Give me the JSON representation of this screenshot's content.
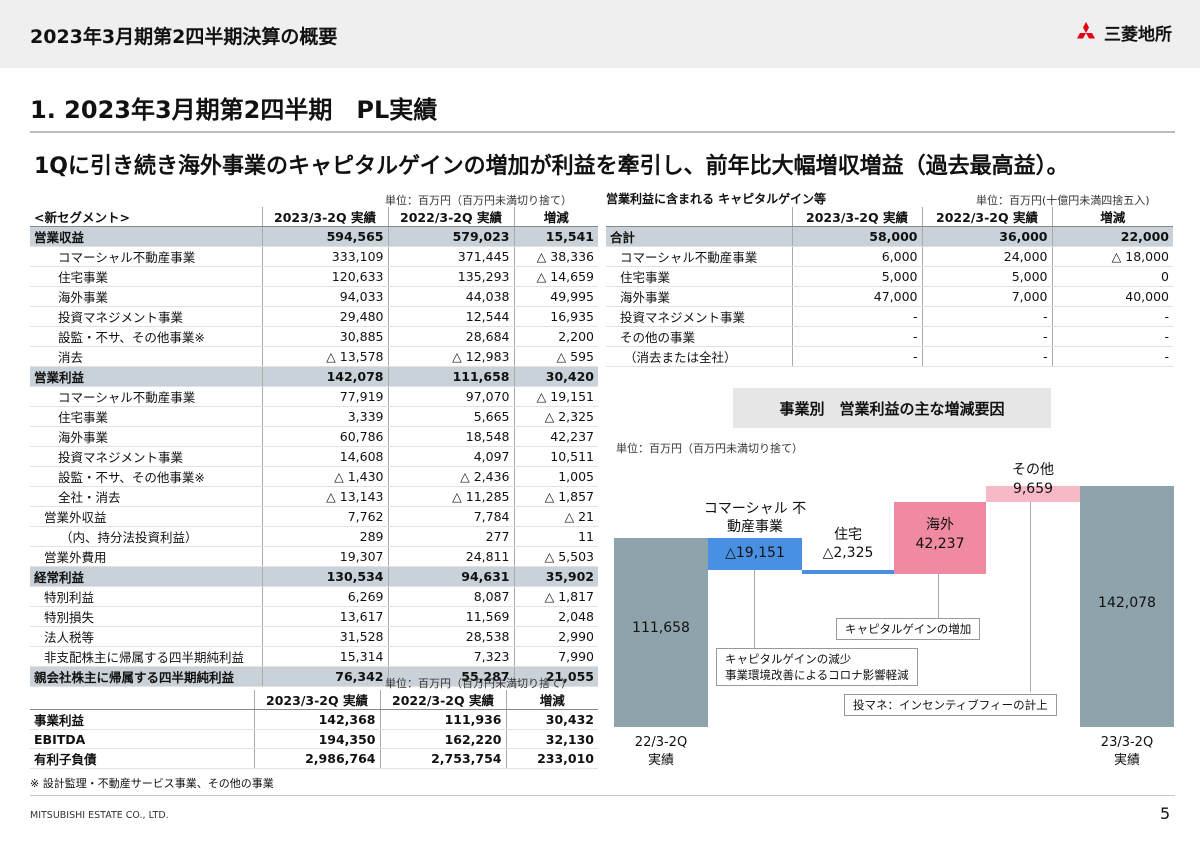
{
  "header": {
    "title": "2023年3月期第2四半期決算の概要",
    "logo_text": "三菱地所"
  },
  "section_title": "1. 2023年3月期第2四半期　PL実績",
  "headline": "1Qに引き続き海外事業のキャピタルゲインの増加が利益を牽引し、前年比大幅増収増益（過去最高益）。",
  "pl_table": {
    "unit": "単位：百万円（百万円未満切り捨て）",
    "headers": [
      "<新セグメント>",
      "2023/3-2Q 実績",
      "2022/3-2Q 実績",
      "増減"
    ],
    "rows": [
      [
        "営業収益",
        "594,565",
        "579,023",
        "15,541"
      ],
      [
        "コマーシャル不動産事業",
        "333,109",
        "371,445",
        "△ 38,336"
      ],
      [
        "住宅事業",
        "120,633",
        "135,293",
        "△ 14,659"
      ],
      [
        "海外事業",
        "94,033",
        "44,038",
        "49,995"
      ],
      [
        "投資マネジメント事業",
        "29,480",
        "12,544",
        "16,935"
      ],
      [
        "設監・不サ、その他事業※",
        "30,885",
        "28,684",
        "2,200"
      ],
      [
        "消去",
        "△ 13,578",
        "△ 12,983",
        "△ 595"
      ],
      [
        "営業利益",
        "142,078",
        "111,658",
        "30,420"
      ],
      [
        "コマーシャル不動産事業",
        "77,919",
        "97,070",
        "△ 19,151"
      ],
      [
        "住宅事業",
        "3,339",
        "5,665",
        "△ 2,325"
      ],
      [
        "海外事業",
        "60,786",
        "18,548",
        "42,237"
      ],
      [
        "投資マネジメント事業",
        "14,608",
        "4,097",
        "10,511"
      ],
      [
        "設監・不サ、その他事業※",
        "△ 1,430",
        "△ 2,436",
        "1,005"
      ],
      [
        "全社・消去",
        "△ 13,143",
        "△ 11,285",
        "△ 1,857"
      ],
      [
        "営業外収益",
        "7,762",
        "7,784",
        "△ 21"
      ],
      [
        "（内、持分法投資利益）",
        "289",
        "277",
        "11"
      ],
      [
        "営業外費用",
        "19,307",
        "24,811",
        "△ 5,503"
      ],
      [
        "経常利益",
        "130,534",
        "94,631",
        "35,902"
      ],
      [
        "特別利益",
        "6,269",
        "8,087",
        "△ 1,817"
      ],
      [
        "特別損失",
        "13,617",
        "11,569",
        "2,048"
      ],
      [
        "法人税等",
        "31,528",
        "28,538",
        "2,990"
      ],
      [
        "非支配株主に帰属する四半期純利益",
        "15,314",
        "7,323",
        "7,990"
      ],
      [
        "親会社株主に帰属する四半期純利益",
        "76,342",
        "55,287",
        "21,055"
      ]
    ]
  },
  "kpi_table": {
    "unit": "単位：百万円（百万円未満切り捨て）",
    "headers": [
      "",
      "2023/3-2Q 実績",
      "2022/3-2Q 実績",
      "増減"
    ],
    "rows": [
      [
        "事業利益",
        "142,368",
        "111,936",
        "30,432"
      ],
      [
        "EBITDA",
        "194,350",
        "162,220",
        "32,130"
      ],
      [
        "有利子負債",
        "2,986,764",
        "2,753,754",
        "233,010"
      ]
    ]
  },
  "note": "※ 設計監理・不動産サービス事業、その他の事業",
  "cg_table": {
    "caption": "営業利益に含まれる キャピタルゲイン等",
    "unit": "単位：百万円(十億円未満四捨五入)",
    "headers": [
      "",
      "2023/3-2Q 実績",
      "2022/3-2Q 実績",
      "増減"
    ],
    "rows": [
      [
        "合計",
        "58,000",
        "36,000",
        "22,000"
      ],
      [
        "コマーシャル不動産事業",
        "6,000",
        "24,000",
        "△ 18,000"
      ],
      [
        "住宅事業",
        "5,000",
        "5,000",
        "0"
      ],
      [
        "海外事業",
        "47,000",
        "7,000",
        "40,000"
      ],
      [
        "投資マネジメント事業",
        "-",
        "-",
        "-"
      ],
      [
        "その他の事業",
        "-",
        "-",
        "-"
      ],
      [
        "（消去または全社）",
        "-",
        "-",
        "-"
      ]
    ]
  },
  "chart_data": {
    "type": "bar",
    "title": "事業別　営業利益の主な増減要因",
    "unit": "単位：百万円（百万円未満切り捨て）",
    "categories": [
      "22/3-2Q 実績",
      "コマーシャル不動産事業",
      "住宅",
      "海外",
      "その他",
      "23/3-2Q 実績"
    ],
    "values": [
      111658,
      -19151,
      -2325,
      42237,
      9659,
      142078
    ],
    "labels": {
      "start": "111,658",
      "commercial_name": "コマーシャル 不動産事業",
      "commercial": "△19,151",
      "housing_name": "住宅",
      "housing": "△2,325",
      "overseas_name": "海外",
      "overseas": "42,237",
      "other_name": "その他",
      "other": "9,659",
      "end": "142,078",
      "x_start_1": "22/3-2Q",
      "x_start_2": "実績",
      "x_end_1": "23/3-2Q",
      "x_end_2": "実績"
    },
    "annotations": {
      "cg_increase": "キャピタルゲインの増加",
      "cg_decrease_1": "キャピタルゲインの減少",
      "cg_decrease_2": "事業環境改善によるコロナ影響軽減",
      "incentive": "投マネ：インセンティブフィーの計上"
    },
    "colors": {
      "total": "#8fa3ad",
      "commercial": "#4a90e2",
      "housing": "#4a90e2",
      "overseas": "#f08aa0",
      "other": "#f7b9c6"
    }
  },
  "footer": {
    "company": "MITSUBISHI ESTATE CO., LTD.",
    "page": "5"
  }
}
